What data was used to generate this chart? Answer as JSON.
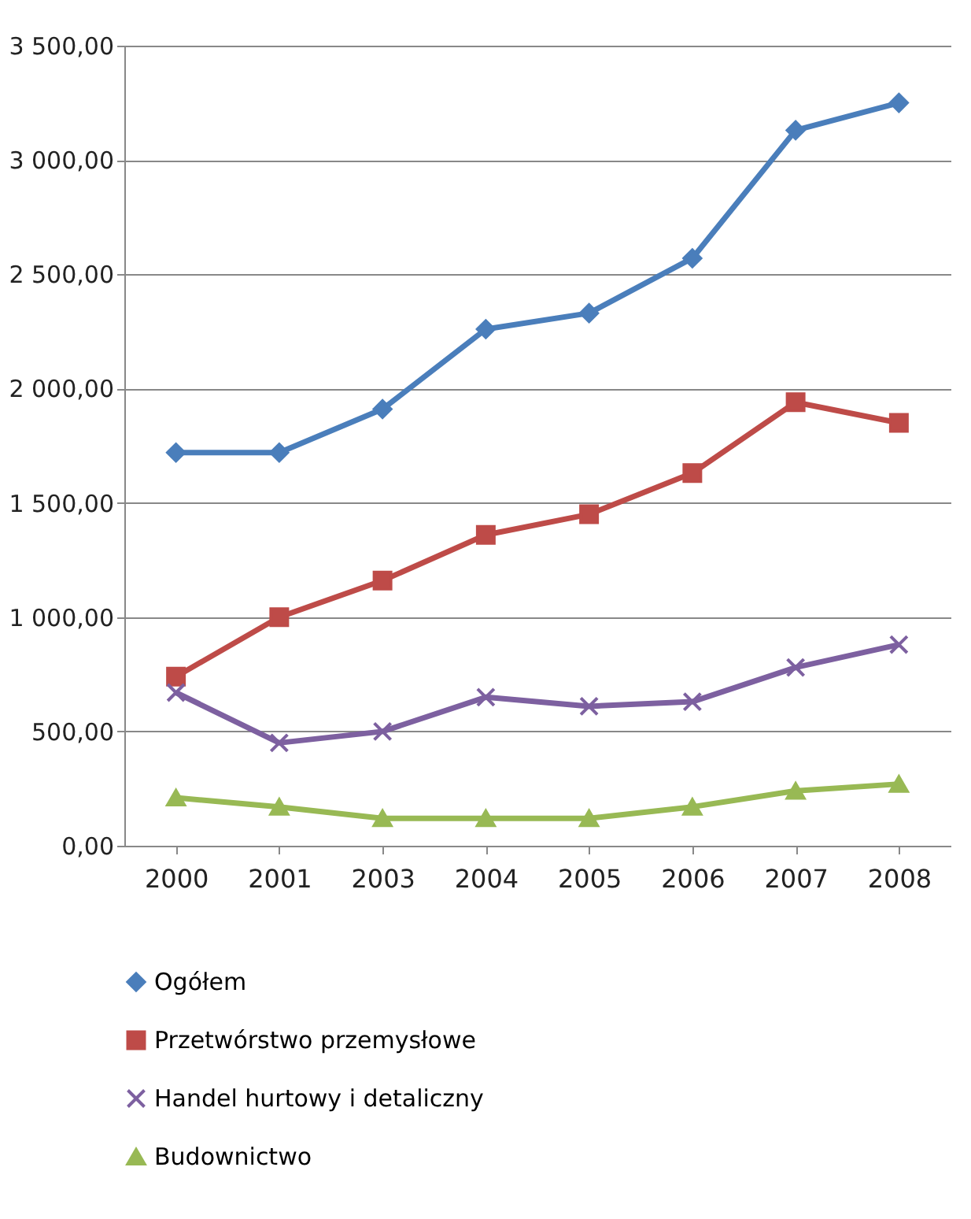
{
  "chart_data": {
    "type": "line",
    "categories": [
      "2000",
      "2001",
      "2003",
      "2004",
      "2005",
      "2006",
      "2007",
      "2008"
    ],
    "series": [
      {
        "name": "Ogółem",
        "color": "#4a7ebb",
        "marker": "diamond",
        "values": [
          1720,
          1720,
          1910,
          2260,
          2330,
          2570,
          3130,
          3250
        ]
      },
      {
        "name": "Przetwórstwo przemysłowe",
        "color": "#be4b48",
        "marker": "square",
        "values": [
          740,
          1000,
          1160,
          1360,
          1450,
          1630,
          1940,
          1850
        ]
      },
      {
        "name": "Handel hurtowy i detaliczny",
        "color": "#7d60a0",
        "marker": "cross",
        "values": [
          670,
          450,
          500,
          650,
          610,
          630,
          780,
          880
        ]
      },
      {
        "name": "Budownictwo",
        "color": "#98b954",
        "marker": "triangle",
        "values": [
          210,
          170,
          120,
          120,
          120,
          170,
          240,
          270
        ]
      }
    ],
    "ylim": [
      0,
      3500
    ],
    "yticks": [
      {
        "value": 0,
        "label": "0,00"
      },
      {
        "value": 500,
        "label": "500,00"
      },
      {
        "value": 1000,
        "label": "1 000,00"
      },
      {
        "value": 1500,
        "label": "1 500,00"
      },
      {
        "value": 2000,
        "label": "2 000,00"
      },
      {
        "value": 2500,
        "label": "2 500,00"
      },
      {
        "value": 3000,
        "label": "3 000,00"
      },
      {
        "value": 3500,
        "label": "3 500,00"
      }
    ],
    "grid": "y",
    "legend": "bottom",
    "line_style": "solid"
  }
}
